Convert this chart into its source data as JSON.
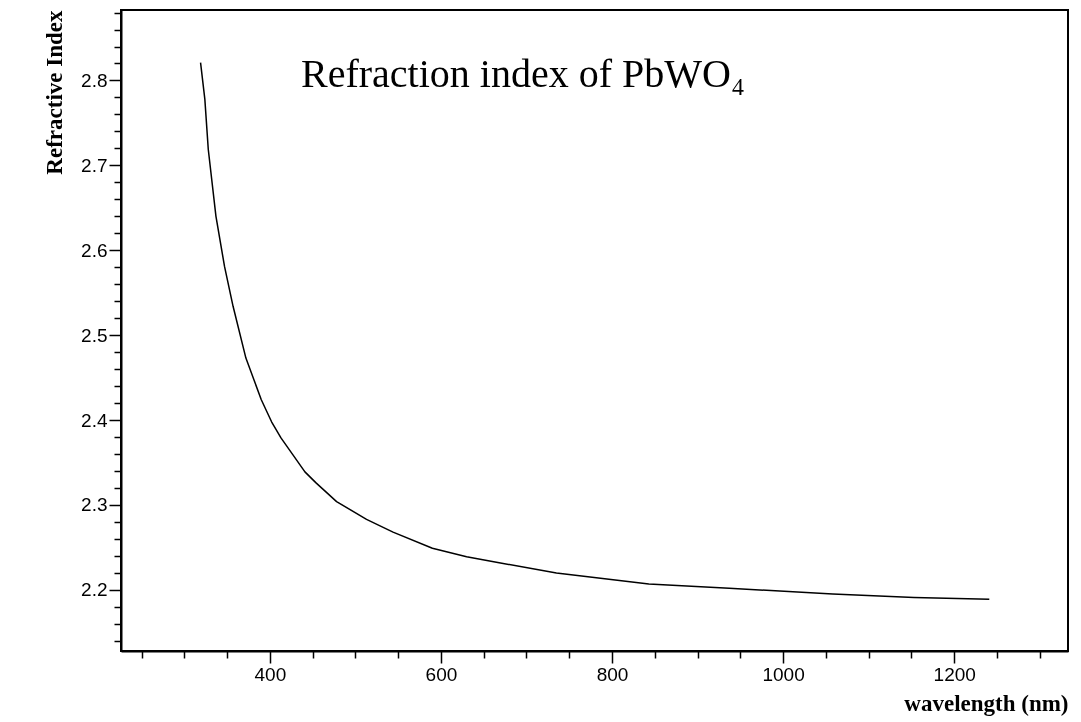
{
  "chart_data": {
    "type": "line",
    "title": "Refraction index of PbWO₄",
    "xlabel": "wavelength (nm)",
    "ylabel": "Refractive Index",
    "x": [
      319,
      324,
      328,
      337,
      347,
      357,
      372,
      390,
      402,
      413,
      427,
      441,
      454,
      478,
      513,
      544,
      590,
      630,
      668,
      735,
      843,
      937,
      1058,
      1153,
      1241
    ],
    "series": [
      {
        "color": "#000000",
        "values": [
          2.821,
          2.778,
          2.719,
          2.64,
          2.581,
          2.534,
          2.473,
          2.424,
          2.398,
          2.379,
          2.359,
          2.339,
          2.326,
          2.304,
          2.283,
          2.268,
          2.249,
          2.239,
          2.232,
          2.22,
          2.207,
          2.202,
          2.195,
          2.191,
          2.189
        ]
      }
    ],
    "xlim": [
      226,
      1333
    ],
    "xticks": [
      {
        "value": 250,
        "label": null
      },
      {
        "value": 300,
        "label": null
      },
      {
        "value": 350,
        "label": null
      },
      400,
      {
        "value": 450,
        "label": null
      },
      {
        "value": 500,
        "label": null
      },
      {
        "value": 550,
        "label": null
      },
      600,
      {
        "value": 650,
        "label": null
      },
      {
        "value": 700,
        "label": null
      },
      {
        "value": 750,
        "label": null
      },
      800,
      {
        "value": 850,
        "label": null
      },
      {
        "value": 900,
        "label": null
      },
      {
        "value": 950,
        "label": null
      },
      1000,
      {
        "value": 1050,
        "label": null
      },
      {
        "value": 1100,
        "label": null
      },
      {
        "value": 1150,
        "label": null
      },
      1200,
      {
        "value": 1250,
        "label": null
      },
      {
        "value": 1300,
        "label": null
      }
    ],
    "ylim": [
      2.128,
      2.883
    ],
    "yticks": [
      {
        "value": 2.14,
        "label": null
      },
      {
        "value": 2.16,
        "label": null
      },
      {
        "value": 2.18,
        "label": null
      },
      {
        "value": 2.2,
        "label": "2.2"
      },
      {
        "value": 2.22,
        "label": null
      },
      {
        "value": 2.24,
        "label": null
      },
      {
        "value": 2.26,
        "label": null
      },
      {
        "value": 2.28,
        "label": null
      },
      {
        "value": 2.3,
        "label": "2.3"
      },
      {
        "value": 2.32,
        "label": null
      },
      {
        "value": 2.34,
        "label": null
      },
      {
        "value": 2.36,
        "label": null
      },
      {
        "value": 2.38,
        "label": null
      },
      {
        "value": 2.4,
        "label": "2.4"
      },
      {
        "value": 2.42,
        "label": null
      },
      {
        "value": 2.44,
        "label": null
      },
      {
        "value": 2.46,
        "label": null
      },
      {
        "value": 2.48,
        "label": null
      },
      {
        "value": 2.5,
        "label": "2.5"
      },
      {
        "value": 2.52,
        "label": null
      },
      {
        "value": 2.54,
        "label": null
      },
      {
        "value": 2.56,
        "label": null
      },
      {
        "value": 2.58,
        "label": null
      },
      {
        "value": 2.6,
        "label": "2.6"
      },
      {
        "value": 2.62,
        "label": null
      },
      {
        "value": 2.64,
        "label": null
      },
      {
        "value": 2.66,
        "label": null
      },
      {
        "value": 2.68,
        "label": null
      },
      {
        "value": 2.7,
        "label": "2.7"
      },
      {
        "value": 2.72,
        "label": null
      },
      {
        "value": 2.74,
        "label": null
      },
      {
        "value": 2.76,
        "label": null
      },
      {
        "value": 2.78,
        "label": null
      },
      {
        "value": 2.8,
        "label": "2.8"
      },
      {
        "value": 2.82,
        "label": null
      },
      {
        "value": 2.84,
        "label": null
      },
      {
        "value": 2.86,
        "label": null
      },
      {
        "value": 2.88,
        "label": null
      }
    ],
    "grid": false,
    "marker": "none",
    "line_style": "solid"
  }
}
